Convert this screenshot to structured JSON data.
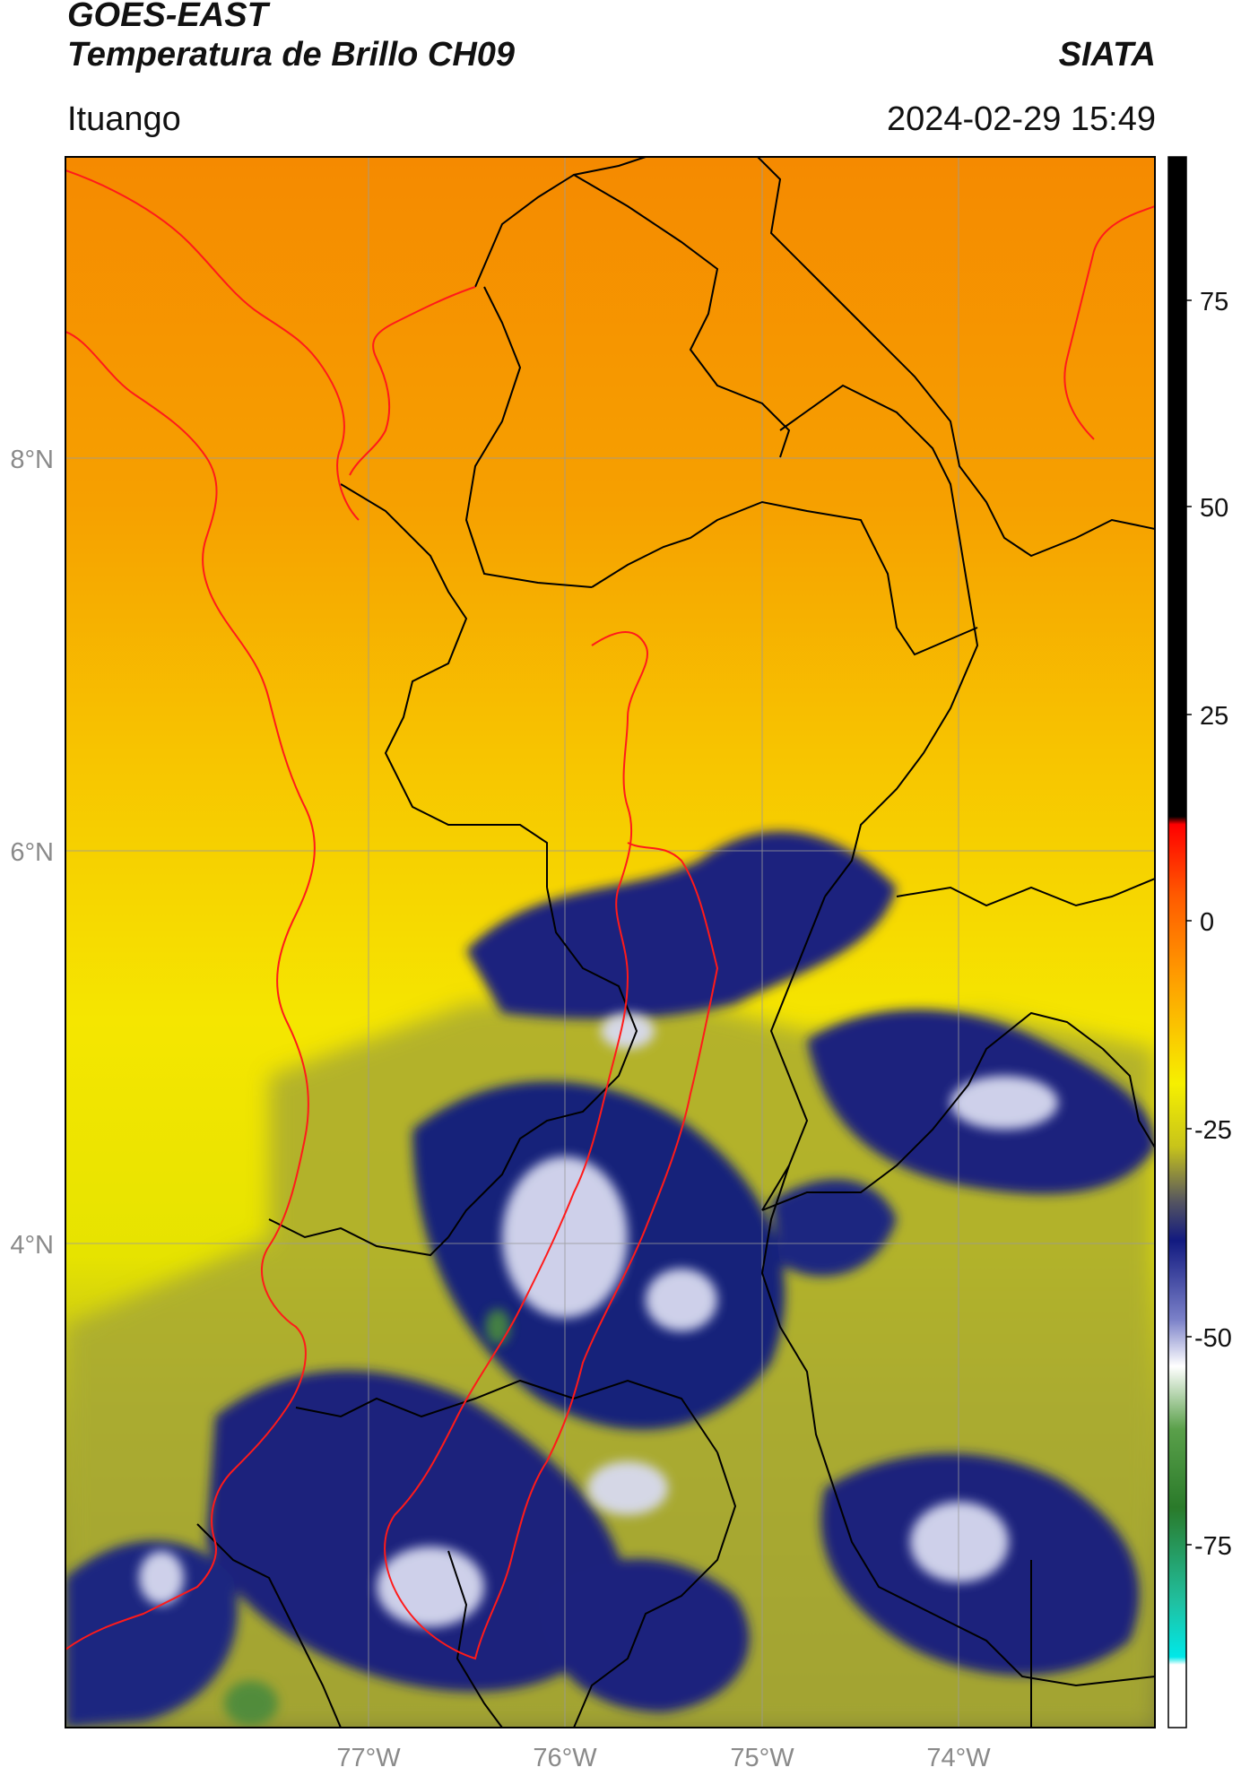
{
  "header": {
    "satellite": "GOES-EAST",
    "product": "Temperatura de Brillo CH09",
    "organization": "SIATA",
    "location": "Ituango",
    "timestamp": "2024-02-29 15:49"
  },
  "map": {
    "lat_ticks": [
      "8°N",
      "6°N",
      "4°N"
    ],
    "lon_ticks": [
      "77°W",
      "76°W",
      "75°W",
      "74°W"
    ],
    "lat_range": [
      1.7,
      9.55
    ],
    "lon_range": [
      -78.54,
      -73.0
    ],
    "gridlines": true
  },
  "colorbar": {
    "ticks": [
      "75",
      "50",
      "25",
      "0",
      "-25",
      "-50",
      "-75"
    ],
    "range": [
      -90,
      90
    ]
  },
  "colors": {
    "warm_top": "#f58b00",
    "yellow": "#f4ee00",
    "olive": "#9a9a30",
    "navy": "#141a7a",
    "basin_outline": "#ff0000",
    "borders": "#000000"
  }
}
